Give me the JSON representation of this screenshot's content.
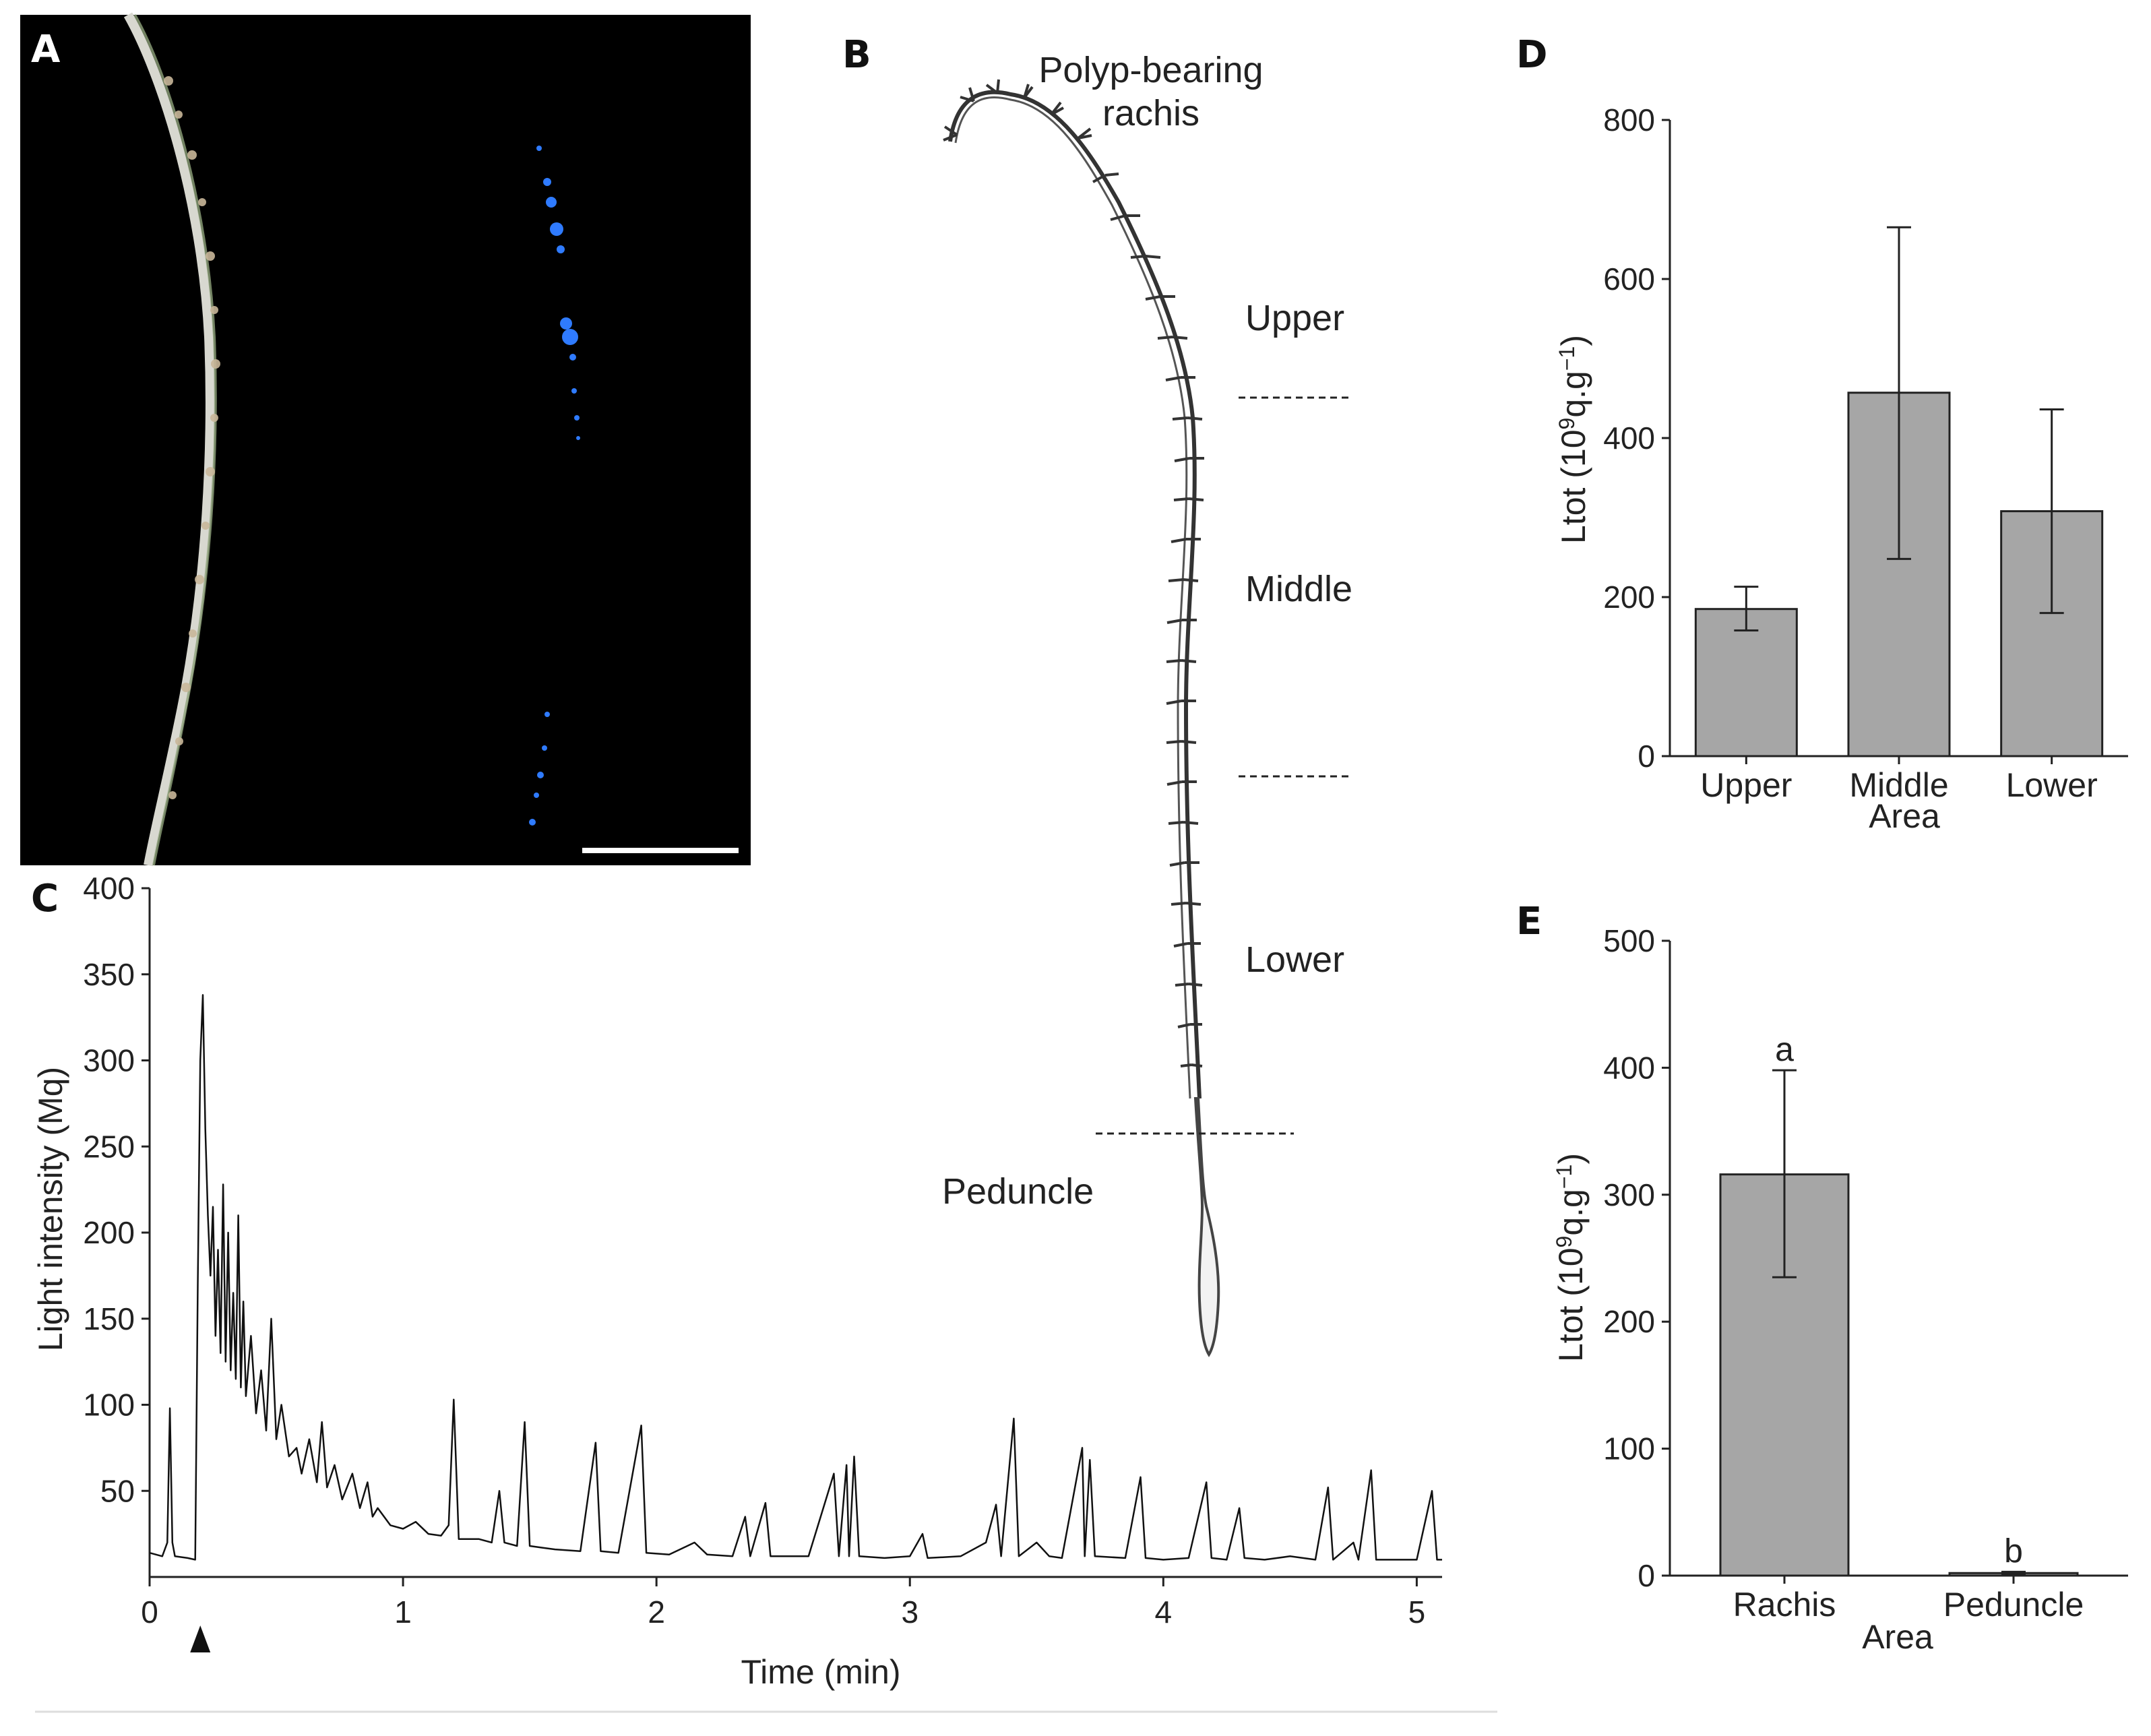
{
  "panels": {
    "a": "A",
    "b": "B",
    "c": "C",
    "d": "D",
    "e": "E"
  },
  "schematic": {
    "top_label_line1": "Polyp-bearing",
    "top_label_line2": "rachis",
    "upper": "Upper",
    "middle": "Middle",
    "lower": "Lower",
    "peduncle": "Peduncle"
  },
  "colors": {
    "bar_fill": "#a6a6a6",
    "bar_stroke": "#222222",
    "trace": "#111111",
    "photo_bg": "#000000",
    "photo_glow": "#2f7bff"
  },
  "chart_data": [
    {
      "id": "C",
      "type": "line",
      "title": "",
      "xlabel": "Time (min)",
      "ylabel": "Light intensity (Mq)",
      "xlim": [
        0,
        5.1
      ],
      "ylim": [
        0,
        400
      ],
      "xticks": [
        0,
        1,
        2,
        3,
        4,
        5
      ],
      "yticks": [
        50,
        100,
        150,
        200,
        250,
        300,
        350,
        400
      ],
      "stimulus_marker_time": 0.2,
      "series": [
        {
          "name": "luminescence",
          "points": [
            [
              0.0,
              14
            ],
            [
              0.05,
              12
            ],
            [
              0.07,
              20
            ],
            [
              0.08,
              98
            ],
            [
              0.09,
              20
            ],
            [
              0.1,
              12
            ],
            [
              0.15,
              11
            ],
            [
              0.18,
              10
            ],
            [
              0.19,
              170
            ],
            [
              0.2,
              300
            ],
            [
              0.21,
              338
            ],
            [
              0.22,
              260
            ],
            [
              0.23,
              210
            ],
            [
              0.24,
              175
            ],
            [
              0.25,
              215
            ],
            [
              0.26,
              140
            ],
            [
              0.27,
              190
            ],
            [
              0.28,
              130
            ],
            [
              0.29,
              228
            ],
            [
              0.3,
              125
            ],
            [
              0.31,
              200
            ],
            [
              0.32,
              120
            ],
            [
              0.33,
              165
            ],
            [
              0.34,
              115
            ],
            [
              0.35,
              210
            ],
            [
              0.36,
              110
            ],
            [
              0.37,
              160
            ],
            [
              0.38,
              105
            ],
            [
              0.4,
              140
            ],
            [
              0.42,
              95
            ],
            [
              0.44,
              120
            ],
            [
              0.46,
              85
            ],
            [
              0.48,
              150
            ],
            [
              0.5,
              80
            ],
            [
              0.52,
              100
            ],
            [
              0.55,
              70
            ],
            [
              0.58,
              75
            ],
            [
              0.6,
              60
            ],
            [
              0.63,
              80
            ],
            [
              0.66,
              55
            ],
            [
              0.68,
              90
            ],
            [
              0.7,
              52
            ],
            [
              0.73,
              65
            ],
            [
              0.76,
              45
            ],
            [
              0.8,
              60
            ],
            [
              0.83,
              40
            ],
            [
              0.86,
              55
            ],
            [
              0.88,
              35
            ],
            [
              0.9,
              40
            ],
            [
              0.95,
              30
            ],
            [
              1.0,
              28
            ],
            [
              1.05,
              32
            ],
            [
              1.1,
              25
            ],
            [
              1.15,
              24
            ],
            [
              1.18,
              30
            ],
            [
              1.2,
              103
            ],
            [
              1.22,
              22
            ],
            [
              1.3,
              22
            ],
            [
              1.35,
              20
            ],
            [
              1.38,
              50
            ],
            [
              1.4,
              20
            ],
            [
              1.45,
              18
            ],
            [
              1.48,
              90
            ],
            [
              1.5,
              18
            ],
            [
              1.55,
              17
            ],
            [
              1.6,
              16
            ],
            [
              1.7,
              15
            ],
            [
              1.76,
              78
            ],
            [
              1.78,
              15
            ],
            [
              1.85,
              14
            ],
            [
              1.94,
              88
            ],
            [
              1.96,
              14
            ],
            [
              2.05,
              13
            ],
            [
              2.15,
              20
            ],
            [
              2.2,
              13
            ],
            [
              2.3,
              12
            ],
            [
              2.35,
              35
            ],
            [
              2.37,
              12
            ],
            [
              2.43,
              43
            ],
            [
              2.45,
              12
            ],
            [
              2.6,
              12
            ],
            [
              2.7,
              60
            ],
            [
              2.72,
              12
            ],
            [
              2.75,
              65
            ],
            [
              2.76,
              12
            ],
            [
              2.78,
              70
            ],
            [
              2.8,
              12
            ],
            [
              2.9,
              11
            ],
            [
              3.0,
              12
            ],
            [
              3.05,
              25
            ],
            [
              3.07,
              11
            ],
            [
              3.2,
              12
            ],
            [
              3.3,
              20
            ],
            [
              3.34,
              42
            ],
            [
              3.36,
              12
            ],
            [
              3.41,
              92
            ],
            [
              3.43,
              12
            ],
            [
              3.5,
              20
            ],
            [
              3.55,
              12
            ],
            [
              3.6,
              11
            ],
            [
              3.68,
              75
            ],
            [
              3.69,
              12
            ],
            [
              3.71,
              68
            ],
            [
              3.73,
              12
            ],
            [
              3.85,
              11
            ],
            [
              3.91,
              58
            ],
            [
              3.93,
              11
            ],
            [
              4.0,
              10
            ],
            [
              4.1,
              11
            ],
            [
              4.17,
              55
            ],
            [
              4.19,
              11
            ],
            [
              4.25,
              10
            ],
            [
              4.3,
              40
            ],
            [
              4.32,
              11
            ],
            [
              4.4,
              10
            ],
            [
              4.5,
              12
            ],
            [
              4.6,
              10
            ],
            [
              4.65,
              52
            ],
            [
              4.67,
              10
            ],
            [
              4.75,
              20
            ],
            [
              4.77,
              10
            ],
            [
              4.82,
              62
            ],
            [
              4.84,
              10
            ],
            [
              4.9,
              10
            ],
            [
              5.0,
              10
            ],
            [
              5.06,
              50
            ],
            [
              5.08,
              10
            ],
            [
              5.1,
              10
            ]
          ]
        }
      ]
    },
    {
      "id": "D",
      "type": "bar",
      "title": "",
      "xlabel": "Area",
      "ylabel": "Ltot (10⁹q.g⁻¹)",
      "ylim": [
        0,
        800
      ],
      "yticks": [
        0,
        200,
        400,
        600,
        800
      ],
      "categories": [
        "Upper",
        "Middle",
        "Lower"
      ],
      "values": [
        185,
        457,
        308
      ],
      "error_low": [
        158,
        248,
        180
      ],
      "error_high": [
        213,
        665,
        436
      ],
      "annotations": []
    },
    {
      "id": "E",
      "type": "bar",
      "title": "",
      "xlabel": "Area",
      "ylabel": "Ltot (10⁹q.g⁻¹)",
      "ylim": [
        0,
        500
      ],
      "yticks": [
        0,
        100,
        200,
        300,
        400,
        500
      ],
      "categories": [
        "Rachis",
        "Peduncle"
      ],
      "values": [
        316,
        2
      ],
      "error_low": [
        235,
        1
      ],
      "error_high": [
        398,
        3
      ],
      "annotations": [
        "a",
        "b"
      ]
    }
  ]
}
